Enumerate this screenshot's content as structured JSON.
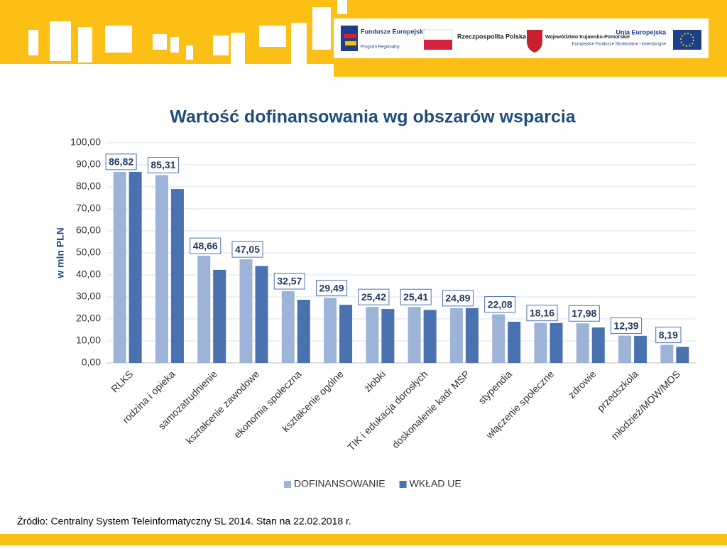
{
  "header": {
    "logos": [
      {
        "title": "Fundusze Europejskie",
        "subtitle": "Program Regionalny"
      },
      {
        "title": "Rzeczpospolita Polska"
      },
      {
        "title": "Województwo Kujawsko-Pomorskie"
      },
      {
        "title": "Unia Europejska",
        "subtitle": "Europejskie Fundusze Strukturalne i Inwestycyjne"
      }
    ]
  },
  "chart_data": {
    "type": "bar",
    "title": "Wartość dofinansowania wg obszarów wsparcia",
    "ylabel": "w mln PLN",
    "categories": [
      "RLKS",
      "rodzina i opieka",
      "samozatrudnienie",
      "kształcenie zawodowe",
      "ekonomia społeczna",
      "kształcenie ogólne",
      "żłobki",
      "TIK i edukacja dorosłych",
      "doskonalenie kadr MSP",
      "stypendia",
      "włączenie społeczne",
      "zdrowie",
      "przedszkola",
      "młodzież/MOW/MOS"
    ],
    "series": [
      {
        "name": "DOFINANSOWANIE",
        "color": "#9db3d8",
        "values": [
          86.82,
          85.31,
          48.66,
          47.05,
          32.57,
          29.49,
          25.42,
          25.41,
          24.89,
          22.08,
          18.16,
          17.98,
          12.39,
          8.19
        ],
        "value_labels": [
          "86,82",
          "85,31",
          "48,66",
          "47,05",
          "32,57",
          "29,49",
          "25,42",
          "25,41",
          "24,89",
          "22,08",
          "18,16",
          "17,98",
          "12,39",
          "8,19"
        ]
      },
      {
        "name": "WKŁAD UE",
        "color": "#4a72b0",
        "values": [
          86.8,
          79.0,
          42.3,
          44.0,
          28.7,
          26.4,
          24.5,
          24.1,
          24.9,
          18.7,
          18.1,
          16.1,
          12.3,
          7.3
        ]
      }
    ],
    "ylim": [
      0,
      100
    ],
    "yticks": [
      {
        "value": 0,
        "label": "0,00"
      },
      {
        "value": 10,
        "label": "10,00"
      },
      {
        "value": 20,
        "label": "20,00"
      },
      {
        "value": 30,
        "label": "30,00"
      },
      {
        "value": 40,
        "label": "40,00"
      },
      {
        "value": 50,
        "label": "50,00"
      },
      {
        "value": 60,
        "label": "60,00"
      },
      {
        "value": 70,
        "label": "70,00"
      },
      {
        "value": 80,
        "label": "80,00"
      },
      {
        "value": 90,
        "label": "90,00"
      },
      {
        "value": 100,
        "label": "100,00"
      }
    ],
    "grid": true,
    "legend": "bottom"
  },
  "footer": {
    "source": "Źródło: Centralny System Teleinformatyczny SL 2014. Stan na 22.02.2018 r."
  }
}
